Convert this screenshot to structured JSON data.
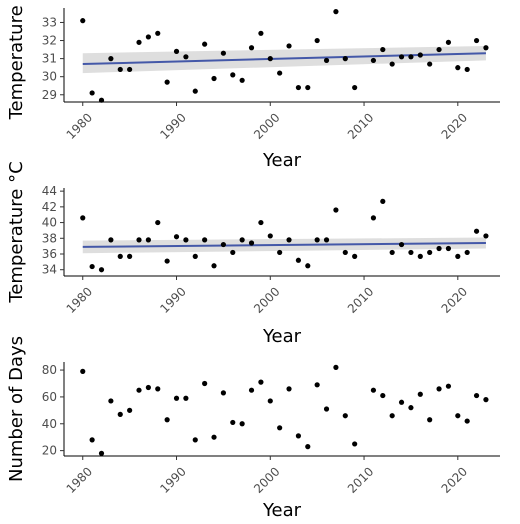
{
  "chart_data": [
    {
      "type": "scatter",
      "xlabel": "Year",
      "ylabel": "Temperature °",
      "xlim": [
        1978,
        2024.5
      ],
      "ylim": [
        28.6,
        33.8
      ],
      "xticks": [
        1980,
        1990,
        2000,
        2010,
        2020
      ],
      "yticks": [
        29,
        30,
        31,
        32,
        33
      ],
      "grid": false,
      "trend": {
        "x": [
          1980,
          2023
        ],
        "y": [
          30.7,
          31.3
        ],
        "ci_low": [
          30.2,
          30.9
        ],
        "ci_high": [
          31.3,
          31.7
        ]
      },
      "points": [
        [
          1980,
          33.1
        ],
        [
          1981,
          29.1
        ],
        [
          1982,
          28.7
        ],
        [
          1983,
          31.0
        ],
        [
          1984,
          30.4
        ],
        [
          1985,
          30.4
        ],
        [
          1986,
          31.9
        ],
        [
          1987,
          32.2
        ],
        [
          1988,
          32.4
        ],
        [
          1989,
          29.7
        ],
        [
          1990,
          31.4
        ],
        [
          1991,
          31.1
        ],
        [
          1992,
          29.2
        ],
        [
          1993,
          31.8
        ],
        [
          1994,
          29.9
        ],
        [
          1995,
          31.3
        ],
        [
          1996,
          30.1
        ],
        [
          1997,
          29.8
        ],
        [
          1998,
          31.6
        ],
        [
          1999,
          32.4
        ],
        [
          2000,
          31.0
        ],
        [
          2001,
          30.2
        ],
        [
          2002,
          31.7
        ],
        [
          2003,
          29.4
        ],
        [
          2004,
          29.4
        ],
        [
          2005,
          32.0
        ],
        [
          2006,
          30.9
        ],
        [
          2007,
          33.6
        ],
        [
          2008,
          31.0
        ],
        [
          2009,
          29.4
        ],
        [
          2011,
          30.9
        ],
        [
          2012,
          31.5
        ],
        [
          2013,
          30.7
        ],
        [
          2014,
          31.1
        ],
        [
          2015,
          31.1
        ],
        [
          2016,
          31.2
        ],
        [
          2017,
          30.7
        ],
        [
          2018,
          31.5
        ],
        [
          2019,
          31.9
        ],
        [
          2020,
          30.5
        ],
        [
          2021,
          30.4
        ],
        [
          2022,
          32.0
        ],
        [
          2023,
          31.6
        ]
      ]
    },
    {
      "type": "scatter",
      "xlabel": "Year",
      "ylabel": "Temperature °C",
      "xlim": [
        1978,
        2024.5
      ],
      "ylim": [
        33.2,
        44.4
      ],
      "xticks": [
        1980,
        1990,
        2000,
        2010,
        2020
      ],
      "yticks": [
        34,
        36,
        38,
        40,
        42,
        44
      ],
      "grid": false,
      "trend": {
        "x": [
          1980,
          2023
        ],
        "y": [
          36.9,
          37.4
        ],
        "ci_low": [
          36.1,
          36.7
        ],
        "ci_high": [
          37.7,
          38.1
        ]
      },
      "points": [
        [
          1980,
          40.6
        ],
        [
          1981,
          34.4
        ],
        [
          1982,
          34.0
        ],
        [
          1983,
          37.8
        ],
        [
          1984,
          35.7
        ],
        [
          1985,
          35.7
        ],
        [
          1986,
          37.8
        ],
        [
          1987,
          37.8
        ],
        [
          1988,
          40.0
        ],
        [
          1989,
          35.1
        ],
        [
          1990,
          38.2
        ],
        [
          1991,
          37.8
        ],
        [
          1992,
          35.7
        ],
        [
          1993,
          37.8
        ],
        [
          1994,
          34.5
        ],
        [
          1995,
          37.2
        ],
        [
          1996,
          36.2
        ],
        [
          1997,
          37.8
        ],
        [
          1998,
          37.4
        ],
        [
          1999,
          40.0
        ],
        [
          2000,
          38.3
        ],
        [
          2001,
          36.2
        ],
        [
          2002,
          37.8
        ],
        [
          2003,
          35.2
        ],
        [
          2004,
          34.5
        ],
        [
          2005,
          37.8
        ],
        [
          2006,
          37.8
        ],
        [
          2007,
          41.6
        ],
        [
          2008,
          36.2
        ],
        [
          2009,
          35.7
        ],
        [
          2011,
          40.6
        ],
        [
          2012,
          42.7
        ],
        [
          2013,
          36.2
        ],
        [
          2014,
          37.2
        ],
        [
          2015,
          36.2
        ],
        [
          2016,
          35.7
        ],
        [
          2017,
          36.2
        ],
        [
          2018,
          36.7
        ],
        [
          2019,
          36.7
        ],
        [
          2020,
          35.7
        ],
        [
          2021,
          36.2
        ],
        [
          2022,
          38.9
        ],
        [
          2023,
          38.3
        ]
      ]
    },
    {
      "type": "scatter",
      "xlabel": "Year",
      "ylabel": "Number of Days",
      "xlim": [
        1978,
        2024.5
      ],
      "ylim": [
        16,
        86
      ],
      "xticks": [
        1980,
        1990,
        2000,
        2010,
        2020
      ],
      "yticks": [
        20,
        40,
        60,
        80
      ],
      "grid": false,
      "points": [
        [
          1980,
          79
        ],
        [
          1981,
          28
        ],
        [
          1982,
          18
        ],
        [
          1983,
          57
        ],
        [
          1984,
          47
        ],
        [
          1985,
          50
        ],
        [
          1986,
          65
        ],
        [
          1987,
          67
        ],
        [
          1988,
          66
        ],
        [
          1989,
          43
        ],
        [
          1990,
          59
        ],
        [
          1991,
          59
        ],
        [
          1992,
          28
        ],
        [
          1993,
          70
        ],
        [
          1994,
          30
        ],
        [
          1995,
          63
        ],
        [
          1996,
          41
        ],
        [
          1997,
          40
        ],
        [
          1998,
          65
        ],
        [
          1999,
          71
        ],
        [
          2000,
          57
        ],
        [
          2001,
          37
        ],
        [
          2002,
          66
        ],
        [
          2003,
          31
        ],
        [
          2004,
          23
        ],
        [
          2005,
          69
        ],
        [
          2006,
          51
        ],
        [
          2007,
          82
        ],
        [
          2008,
          46
        ],
        [
          2009,
          25
        ],
        [
          2011,
          65
        ],
        [
          2012,
          61
        ],
        [
          2013,
          46
        ],
        [
          2014,
          56
        ],
        [
          2015,
          52
        ],
        [
          2016,
          62
        ],
        [
          2017,
          43
        ],
        [
          2018,
          66
        ],
        [
          2019,
          68
        ],
        [
          2020,
          46
        ],
        [
          2021,
          42
        ],
        [
          2022,
          61
        ],
        [
          2023,
          58
        ]
      ]
    }
  ]
}
